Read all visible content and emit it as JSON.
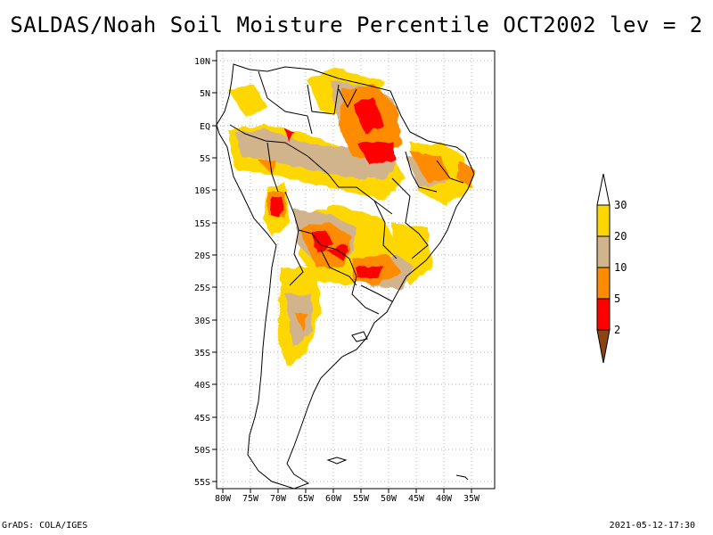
{
  "title": "SALDAS/Noah Soil Moisture Percentile OCT2002 lev = 2",
  "map": {
    "lon_range": [
      -80,
      -30
    ],
    "lat_range": [
      -56,
      12
    ],
    "lon_ticks": [
      "80W",
      "75W",
      "70W",
      "65W",
      "60W",
      "55W",
      "50W",
      "45W",
      "40W",
      "35W"
    ],
    "lat_ticks": [
      "10N",
      "5N",
      "EQ",
      "5S",
      "10S",
      "15S",
      "20S",
      "25S",
      "30S",
      "35S",
      "40S",
      "45S",
      "50S",
      "55S"
    ],
    "grid": true
  },
  "legend": {
    "levels": [
      "2",
      "5",
      "10",
      "20",
      "30"
    ],
    "colors": {
      "below_2": "#8b4513",
      "2_5": "#ff0000",
      "5_10": "#ff8c00",
      "10_20": "#d2b48c",
      "20_30": "#ffd700",
      "above_30": "#ffffff"
    }
  },
  "footer": {
    "left": "GrADS: COLA/IGES",
    "right": "2021-05-12-17:30"
  }
}
